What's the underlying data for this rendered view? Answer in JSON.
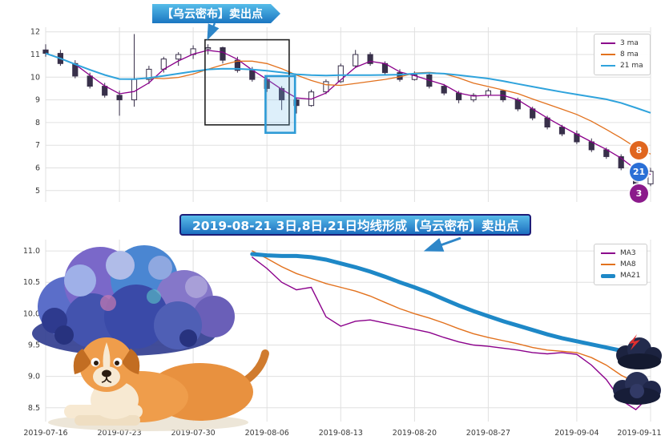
{
  "banners": {
    "top_callout": "【乌云密布】卖出点",
    "middle_callout": "2019-08-21 3日,8日,21日均线形成【乌云密布】卖出点"
  },
  "top_chart": {
    "badges": [
      {
        "label": "8",
        "color": "#E0661F"
      },
      {
        "label": "21",
        "color": "#2A6FD6"
      },
      {
        "label": "3",
        "color": "#8B1A8B"
      }
    ]
  },
  "decorations": {
    "storm_cloud_icon": "storm-cloud",
    "dog_icon": "dog-lying-under-cloud",
    "dark_cloud_lightning_icon": "dark-cloud-with-red-lightning",
    "dark_cloud_icon": "dark-cloud"
  },
  "chart_data": [
    {
      "type": "candlestick",
      "title": "",
      "grid": true,
      "legend_position": "upper right",
      "ylim": [
        4.5,
        12.2
      ],
      "ytick_values": [
        5,
        6,
        7,
        8,
        9,
        10,
        11,
        12
      ],
      "ytick_labels": [
        "5",
        "6",
        "7",
        "8",
        "9",
        "10",
        "11",
        "12"
      ],
      "x_tick_indices": [
        0,
        5,
        10,
        15,
        20,
        25,
        30,
        36,
        41
      ],
      "x_tick_labels": [
        "2019-07-16",
        "2019-07-23",
        "2019-07-30",
        "2019-08-06",
        "2019-08-13",
        "2019-08-20",
        "2019-08-27",
        "2019-09-04",
        "2019-09-11"
      ],
      "dates": [
        "2019-07-16",
        "2019-07-17",
        "2019-07-18",
        "2019-07-19",
        "2019-07-22",
        "2019-07-23",
        "2019-07-24",
        "2019-07-25",
        "2019-07-26",
        "2019-07-29",
        "2019-07-30",
        "2019-07-31",
        "2019-08-01",
        "2019-08-02",
        "2019-08-05",
        "2019-08-06",
        "2019-08-07",
        "2019-08-08",
        "2019-08-09",
        "2019-08-12",
        "2019-08-13",
        "2019-08-14",
        "2019-08-15",
        "2019-08-16",
        "2019-08-19",
        "2019-08-20",
        "2019-08-21",
        "2019-08-22",
        "2019-08-23",
        "2019-08-26",
        "2019-08-27",
        "2019-08-28",
        "2019-08-29",
        "2019-08-30",
        "2019-09-02",
        "2019-09-03",
        "2019-09-04",
        "2019-09-05",
        "2019-09-06",
        "2019-09-09",
        "2019-09-10",
        "2019-09-11"
      ],
      "ohlc": [
        [
          11.2,
          11.45,
          10.9,
          11.05
        ],
        [
          11.05,
          11.2,
          10.5,
          10.6
        ],
        [
          10.6,
          10.75,
          9.95,
          10.05
        ],
        [
          10.05,
          10.2,
          9.5,
          9.6
        ],
        [
          9.6,
          9.75,
          9.1,
          9.2
        ],
        [
          9.2,
          9.4,
          8.3,
          9.0
        ],
        [
          9.0,
          11.9,
          8.7,
          9.9
        ],
        [
          9.9,
          10.5,
          9.7,
          10.35
        ],
        [
          10.35,
          10.9,
          10.2,
          10.8
        ],
        [
          10.8,
          11.1,
          10.5,
          11.0
        ],
        [
          11.0,
          11.4,
          10.8,
          11.25
        ],
        [
          11.25,
          11.45,
          11.0,
          11.3
        ],
        [
          11.3,
          11.35,
          10.6,
          10.75
        ],
        [
          10.75,
          10.9,
          10.2,
          10.3
        ],
        [
          10.3,
          10.45,
          9.8,
          9.9
        ],
        [
          9.9,
          10.0,
          9.35,
          9.5
        ],
        [
          9.5,
          9.6,
          8.55,
          9.0
        ],
        [
          9.0,
          9.1,
          8.4,
          8.75
        ],
        [
          8.75,
          9.45,
          8.7,
          9.35
        ],
        [
          9.35,
          9.9,
          9.25,
          9.8
        ],
        [
          9.8,
          10.6,
          9.75,
          10.5
        ],
        [
          10.5,
          11.2,
          10.4,
          11.0
        ],
        [
          11.0,
          11.1,
          10.5,
          10.6
        ],
        [
          10.6,
          10.7,
          10.1,
          10.2
        ],
        [
          10.2,
          10.35,
          9.8,
          9.9
        ],
        [
          9.9,
          10.25,
          9.85,
          10.1
        ],
        [
          10.1,
          10.15,
          9.5,
          9.6
        ],
        [
          9.6,
          9.7,
          9.2,
          9.3
        ],
        [
          9.3,
          9.4,
          8.85,
          9.0
        ],
        [
          9.0,
          9.3,
          8.9,
          9.2
        ],
        [
          9.2,
          9.5,
          9.1,
          9.4
        ],
        [
          9.4,
          9.45,
          8.9,
          9.0
        ],
        [
          9.0,
          9.1,
          8.5,
          8.6
        ],
        [
          8.6,
          8.7,
          8.1,
          8.2
        ],
        [
          8.2,
          8.3,
          7.7,
          7.8
        ],
        [
          7.8,
          7.9,
          7.4,
          7.5
        ],
        [
          7.5,
          7.65,
          7.05,
          7.15
        ],
        [
          7.15,
          7.3,
          6.7,
          6.8
        ],
        [
          6.8,
          6.9,
          6.4,
          6.5
        ],
        [
          6.5,
          6.6,
          5.9,
          6.0
        ],
        [
          6.0,
          6.1,
          4.9,
          5.3
        ],
        [
          5.3,
          6.0,
          5.2,
          5.85
        ]
      ],
      "moving_averages": [
        {
          "name": "3 ma",
          "period": 3,
          "color": "#8B008B"
        },
        {
          "name": "8 ma",
          "period": 8,
          "color": "#E2711D"
        },
        {
          "name": "21 ma",
          "period": 21,
          "color": "#2FA3DC"
        }
      ],
      "annotations": {
        "boxes": [
          {
            "name": "dark-cloud-cover-region",
            "i0": 10.8,
            "i1": 16.5,
            "v0": 7.9,
            "v1": 11.65,
            "color": "#222222",
            "lw": 1.6,
            "fill": "none"
          },
          {
            "name": "sell-signal-region",
            "i0": 14.9,
            "i1": 16.9,
            "v0": 7.55,
            "v1": 10.05,
            "color": "#2E9BD6",
            "lw": 2.6,
            "fill": "rgba(120,190,235,0.25)"
          }
        ]
      }
    },
    {
      "type": "line",
      "title": "",
      "grid": true,
      "legend_position": "upper right",
      "ylim": [
        8.28,
        11.18
      ],
      "ytick_values": [
        8.5,
        9.0,
        9.5,
        10.0,
        10.5,
        11.0
      ],
      "ytick_labels": [
        "8.5",
        "9.0",
        "9.5",
        "10.0",
        "10.5",
        "11.0"
      ],
      "start_index": 14,
      "series": [
        {
          "name": "MA3",
          "color": "#8B008B",
          "width": 1.4,
          "values": [
            10.9,
            10.72,
            10.5,
            10.38,
            10.42,
            9.95,
            9.8,
            9.88,
            9.9,
            9.85,
            9.8,
            9.75,
            9.7,
            9.62,
            9.55,
            9.5,
            9.48,
            9.45,
            9.42,
            9.38,
            9.36,
            9.38,
            9.35,
            9.18,
            8.95,
            8.62,
            8.47,
            8.7
          ]
        },
        {
          "name": "MA8",
          "color": "#E2711D",
          "width": 1.4,
          "values": [
            11.0,
            10.88,
            10.75,
            10.64,
            10.56,
            10.48,
            10.42,
            10.36,
            10.28,
            10.18,
            10.08,
            10.0,
            9.93,
            9.85,
            9.76,
            9.68,
            9.62,
            9.57,
            9.52,
            9.46,
            9.42,
            9.4,
            9.38,
            9.3,
            9.18,
            9.02,
            8.9,
            8.78
          ]
        },
        {
          "name": "MA21",
          "color": "#1E88C7",
          "width": 5,
          "values": [
            10.95,
            10.93,
            10.92,
            10.92,
            10.9,
            10.86,
            10.8,
            10.74,
            10.67,
            10.59,
            10.5,
            10.42,
            10.33,
            10.23,
            10.13,
            10.04,
            9.96,
            9.88,
            9.81,
            9.74,
            9.67,
            9.61,
            9.56,
            9.51,
            9.46,
            9.41,
            9.36,
            9.31
          ]
        }
      ]
    }
  ]
}
